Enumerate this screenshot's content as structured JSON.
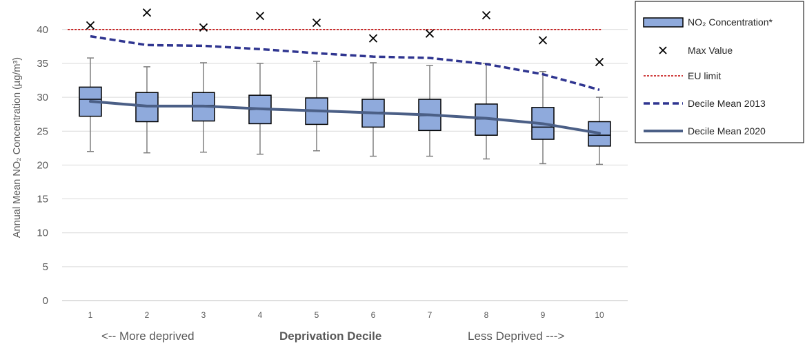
{
  "chart_data": {
    "type": "box",
    "ylabel": "Annual Mean NO₂ Concentration (µg/m³)",
    "xlabel": "Deprivation Decile",
    "xlabel_left": "<-- More deprived",
    "xlabel_right": "Less Deprived --->",
    "categories": [
      "1",
      "2",
      "3",
      "4",
      "5",
      "6",
      "7",
      "8",
      "9",
      "10"
    ],
    "ylim": [
      0,
      43
    ],
    "yticks": [
      "0",
      "5",
      "10",
      "15",
      "20",
      "25",
      "30",
      "35",
      "40"
    ],
    "grid": true,
    "legend_position": "right",
    "boxes": {
      "name": "NO₂ Concentration*",
      "color": "#8faadc",
      "min": [
        22.0,
        21.8,
        21.9,
        21.6,
        22.1,
        21.3,
        21.3,
        20.9,
        20.2,
        20.1
      ],
      "q1": [
        27.2,
        26.4,
        26.5,
        26.1,
        26.0,
        25.6,
        25.1,
        24.4,
        23.8,
        22.8
      ],
      "median": [
        29.7,
        28.8,
        28.8,
        28.2,
        28.0,
        27.8,
        27.3,
        26.8,
        25.6,
        24.4
      ],
      "q3": [
        31.5,
        30.7,
        30.7,
        30.3,
        29.9,
        29.7,
        29.7,
        29.0,
        28.5,
        26.4
      ],
      "max": [
        35.8,
        34.5,
        35.1,
        35.0,
        35.3,
        35.1,
        34.7,
        35.0,
        33.8,
        30.0
      ]
    },
    "series": [
      {
        "name": "Max Value",
        "style": "marker-x",
        "color": "#000000",
        "values": [
          40.6,
          42.5,
          40.3,
          42.0,
          41.0,
          38.7,
          39.4,
          42.1,
          38.4,
          35.2
        ]
      },
      {
        "name": "EU limit",
        "style": "dotted",
        "color": "#c00000",
        "values": [
          40,
          40,
          40,
          40,
          40,
          40,
          40,
          40,
          40,
          40
        ]
      },
      {
        "name": "Decile Mean 2013",
        "style": "dashed",
        "color": "#2f3590",
        "values": [
          39.0,
          37.7,
          37.6,
          37.1,
          36.5,
          36.0,
          35.8,
          34.9,
          33.4,
          31.1
        ]
      },
      {
        "name": "Decile Mean 2020",
        "style": "solid",
        "color": "#4b5f86",
        "values": [
          29.4,
          28.7,
          28.7,
          28.3,
          28.0,
          27.7,
          27.4,
          26.9,
          26.1,
          24.7
        ]
      }
    ]
  }
}
